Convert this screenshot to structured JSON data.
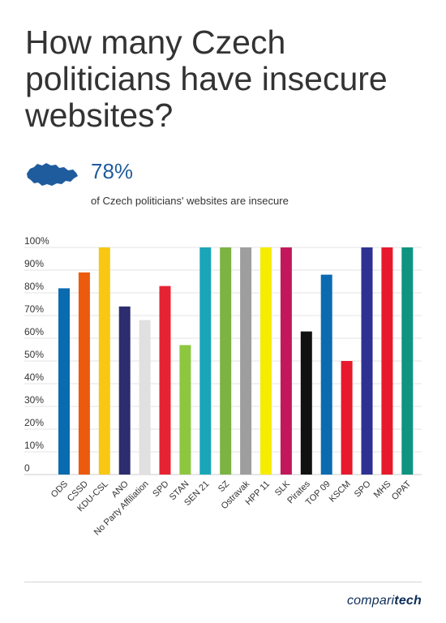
{
  "title": "How many Czech politicians have insecure websites?",
  "stat": {
    "icon": "czech-republic-map-icon",
    "value": "78%",
    "caption": "of Czech politicians' websites are insecure"
  },
  "brand": {
    "part1": "compari",
    "part2": "tech"
  },
  "colors": {
    "title": "#333333",
    "stat": "#1f5c9e",
    "brand": "#0d2d57"
  },
  "chart_data": {
    "type": "bar",
    "categories": [
      "ODS",
      "CSSD",
      "KDU-CSL",
      "ANO",
      "No Party Affiliation",
      "SPD",
      "STAN",
      "SEN 21",
      "SZ",
      "Ostravak",
      "HPP 11",
      "SLK",
      "Pirates",
      "TOP 09",
      "KSCM",
      "SPO",
      "MHS",
      "OPAT"
    ],
    "values": [
      82,
      89,
      100,
      74,
      68,
      83,
      57,
      100,
      100,
      100,
      100,
      100,
      63,
      88,
      50,
      100,
      100,
      100
    ],
    "colors": [
      "#0a6bb0",
      "#ec5a0d",
      "#f7c714",
      "#2c2c6e",
      "#e0e0e0",
      "#e62333",
      "#8dc63f",
      "#1aa5b8",
      "#7cb342",
      "#9e9e9e",
      "#f5ec00",
      "#c2185b",
      "#111111",
      "#0a6bb0",
      "#e8192c",
      "#2e3192",
      "#e8192c",
      "#0e9480"
    ],
    "yticks": [
      "0",
      "10%",
      "20%",
      "30%",
      "40%",
      "50%",
      "60%",
      "70%",
      "80%",
      "90%",
      "100%"
    ],
    "ylim": [
      0,
      100
    ],
    "grid": true,
    "title": "",
    "xlabel": "",
    "ylabel": ""
  }
}
